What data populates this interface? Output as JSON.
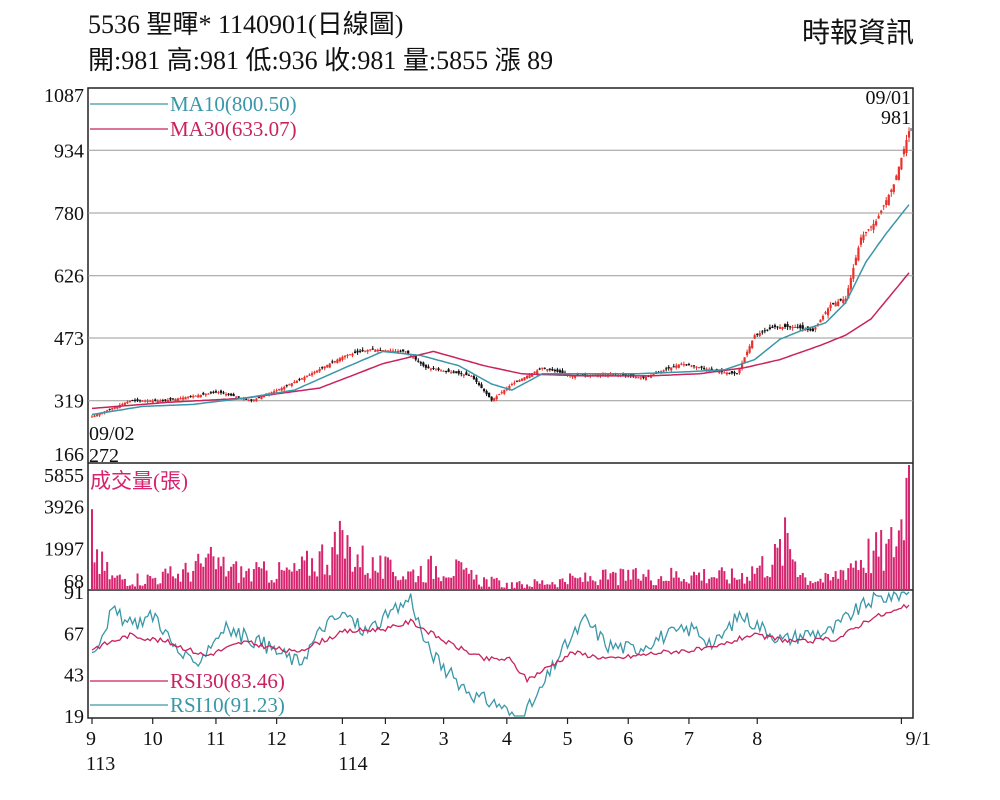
{
  "header": {
    "title": "5536  聖暉* 1140901(日線圖)",
    "ohlc": "開:981 高:981 低:936 收:981 量:5855 漲 89",
    "source": "時報資訊"
  },
  "colors": {
    "up": "#e8322e",
    "down": "#111111",
    "ma10": "#3a97a8",
    "ma30": "#c8235e",
    "volume": "#d6246e",
    "rsi10": "#3a97a8",
    "rsi30": "#c8235e",
    "grid": "#999999"
  },
  "chart_data": [
    {
      "type": "candlestick",
      "ylim": [
        166,
        1087
      ],
      "yticks": [
        1087,
        934,
        780,
        626,
        473,
        319,
        166
      ],
      "grid": true,
      "legend": [
        {
          "key": "ma10",
          "label": "MA10(800.50)"
        },
        {
          "key": "ma30",
          "label": "MA30(633.07)"
        }
      ],
      "annotations": {
        "start_date": "09/02",
        "start_value": "272",
        "last_date": "09/01",
        "last_value": "981"
      },
      "close_anchors": [
        [
          0,
          280
        ],
        [
          15,
          319
        ],
        [
          28,
          319
        ],
        [
          50,
          340
        ],
        [
          63,
          319
        ],
        [
          75,
          350
        ],
        [
          85,
          380
        ],
        [
          100,
          430
        ],
        [
          110,
          445
        ],
        [
          124,
          440
        ],
        [
          132,
          400
        ],
        [
          150,
          380
        ],
        [
          158,
          320
        ],
        [
          166,
          360
        ],
        [
          178,
          400
        ],
        [
          190,
          380
        ],
        [
          205,
          385
        ],
        [
          218,
          375
        ],
        [
          233,
          410
        ],
        [
          241,
          400
        ],
        [
          248,
          390
        ],
        [
          255,
          385
        ],
        [
          262,
          480
        ],
        [
          270,
          500
        ],
        [
          278,
          500
        ],
        [
          285,
          490
        ],
        [
          292,
          555
        ],
        [
          298,
          570
        ],
        [
          304,
          720
        ],
        [
          310,
          760
        ],
        [
          317,
          850
        ],
        [
          323,
          981
        ]
      ],
      "ma10_anchors": [
        [
          0,
          285
        ],
        [
          20,
          305
        ],
        [
          40,
          310
        ],
        [
          60,
          325
        ],
        [
          80,
          345
        ],
        [
          100,
          400
        ],
        [
          115,
          440
        ],
        [
          130,
          430
        ],
        [
          145,
          405
        ],
        [
          158,
          360
        ],
        [
          166,
          345
        ],
        [
          178,
          385
        ],
        [
          195,
          385
        ],
        [
          215,
          385
        ],
        [
          235,
          390
        ],
        [
          250,
          395
        ],
        [
          262,
          420
        ],
        [
          272,
          470
        ],
        [
          282,
          495
        ],
        [
          290,
          510
        ],
        [
          298,
          560
        ],
        [
          306,
          660
        ],
        [
          314,
          730
        ],
        [
          323,
          800.5
        ]
      ],
      "ma30_anchors": [
        [
          0,
          300
        ],
        [
          30,
          315
        ],
        [
          60,
          325
        ],
        [
          90,
          350
        ],
        [
          115,
          410
        ],
        [
          135,
          440
        ],
        [
          155,
          405
        ],
        [
          170,
          385
        ],
        [
          195,
          380
        ],
        [
          220,
          380
        ],
        [
          240,
          385
        ],
        [
          258,
          400
        ],
        [
          272,
          420
        ],
        [
          288,
          455
        ],
        [
          298,
          480
        ],
        [
          308,
          520
        ],
        [
          316,
          580
        ],
        [
          323,
          633.07
        ]
      ]
    },
    {
      "type": "bar",
      "title": "成交量(張)",
      "ylim": [
        68,
        5855
      ],
      "yticks": [
        5855,
        3926,
        1997,
        68
      ],
      "last_value": 5855,
      "anchors": [
        [
          0,
          2800
        ],
        [
          3,
          1500
        ],
        [
          8,
          700
        ],
        [
          20,
          650
        ],
        [
          35,
          900
        ],
        [
          46,
          1500
        ],
        [
          60,
          950
        ],
        [
          80,
          1000
        ],
        [
          88,
          1600
        ],
        [
          96,
          2200
        ],
        [
          100,
          2400
        ],
        [
          110,
          1300
        ],
        [
          124,
          900
        ],
        [
          140,
          1400
        ],
        [
          150,
          700
        ],
        [
          166,
          300
        ],
        [
          180,
          500
        ],
        [
          200,
          700
        ],
        [
          220,
          800
        ],
        [
          240,
          900
        ],
        [
          255,
          750
        ],
        [
          270,
          1700
        ],
        [
          275,
          2700
        ],
        [
          282,
          700
        ],
        [
          292,
          600
        ],
        [
          300,
          1500
        ],
        [
          308,
          2000
        ],
        [
          315,
          2100
        ],
        [
          320,
          3500
        ],
        [
          322,
          5855
        ]
      ]
    },
    {
      "type": "line",
      "ylim": [
        19,
        91
      ],
      "yticks": [
        91,
        67,
        43,
        19
      ],
      "series": [
        {
          "name": "RSI10(91.23)",
          "key": "rsi10",
          "anchors": [
            [
              0,
              55
            ],
            [
              8,
              80
            ],
            [
              15,
              72
            ],
            [
              25,
              78
            ],
            [
              32,
              60
            ],
            [
              40,
              48
            ],
            [
              52,
              70
            ],
            [
              66,
              62
            ],
            [
              75,
              55
            ],
            [
              82,
              50
            ],
            [
              92,
              72
            ],
            [
              100,
              78
            ],
            [
              108,
              68
            ],
            [
              120,
              80
            ],
            [
              126,
              88
            ],
            [
              132,
              60
            ],
            [
              140,
              45
            ],
            [
              152,
              30
            ],
            [
              162,
              25
            ],
            [
              168,
              15
            ],
            [
              176,
              30
            ],
            [
              185,
              55
            ],
            [
              195,
              75
            ],
            [
              204,
              60
            ],
            [
              215,
              58
            ],
            [
              225,
              65
            ],
            [
              238,
              70
            ],
            [
              246,
              60
            ],
            [
              256,
              78
            ],
            [
              263,
              72
            ],
            [
              273,
              63
            ],
            [
              283,
              67
            ],
            [
              292,
              68
            ],
            [
              300,
              78
            ],
            [
              308,
              86
            ],
            [
              316,
              89
            ],
            [
              323,
              91.23
            ]
          ]
        },
        {
          "name": "RSI30(83.46)",
          "key": "rsi30",
          "anchors": [
            [
              0,
              58
            ],
            [
              15,
              66
            ],
            [
              30,
              62
            ],
            [
              45,
              54
            ],
            [
              60,
              62
            ],
            [
              80,
              56
            ],
            [
              100,
              68
            ],
            [
              118,
              70
            ],
            [
              126,
              74
            ],
            [
              140,
              62
            ],
            [
              155,
              52
            ],
            [
              165,
              52
            ],
            [
              172,
              40
            ],
            [
              190,
              56
            ],
            [
              205,
              52
            ],
            [
              225,
              56
            ],
            [
              245,
              58
            ],
            [
              260,
              66
            ],
            [
              280,
              62
            ],
            [
              295,
              64
            ],
            [
              308,
              76
            ],
            [
              318,
              80
            ],
            [
              323,
              83.46
            ]
          ]
        }
      ]
    }
  ],
  "x_axis": {
    "ticks": [
      {
        "label": "9",
        "i": 0
      },
      {
        "label": "10",
        "i": 24
      },
      {
        "label": "11",
        "i": 49
      },
      {
        "label": "12",
        "i": 73
      },
      {
        "label": "1",
        "i": 99
      },
      {
        "label": "2",
        "i": 116
      },
      {
        "label": "3",
        "i": 139
      },
      {
        "label": "4",
        "i": 164
      },
      {
        "label": "5",
        "i": 188
      },
      {
        "label": "6",
        "i": 212
      },
      {
        "label": "7",
        "i": 236
      },
      {
        "label": "8",
        "i": 263
      },
      {
        "label": "9/1",
        "i": 320
      }
    ],
    "years": [
      {
        "label": "113",
        "i": 0
      },
      {
        "label": "114",
        "i": 99
      }
    ]
  }
}
